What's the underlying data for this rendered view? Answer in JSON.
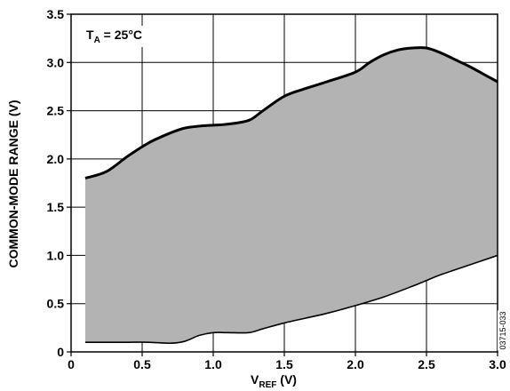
{
  "chart_data": {
    "type": "area",
    "xlabel": "V",
    "xlabel_sub": "REF",
    "xlabel_unit": " (V)",
    "ylabel": "COMMON-MODE RANGE (V)",
    "xlim": [
      0,
      3.0
    ],
    "ylim": [
      0,
      3.5
    ],
    "grid": true,
    "x_ticks": [
      0,
      0.5,
      1.0,
      1.5,
      2.0,
      2.5,
      3.0
    ],
    "x_tick_labels": [
      "0",
      "0.5",
      "1.0",
      "1.5",
      "2.0",
      "2.5",
      "3.0"
    ],
    "y_ticks": [
      0,
      0.5,
      1.0,
      1.5,
      2.0,
      2.5,
      3.0,
      3.5
    ],
    "y_tick_labels": [
      "0",
      "0.5",
      "1.0",
      "1.5",
      "2.0",
      "2.5",
      "3.0",
      "3.5"
    ],
    "annotation": {
      "main": "T",
      "sub": "A",
      "rest": " = 25°C"
    },
    "figure_code": "03715-033",
    "fill_color": "#b3b3b3",
    "line_color": "#000000",
    "upper": {
      "x": [
        0.1,
        0.25,
        0.4,
        0.55,
        0.7,
        0.8,
        0.9,
        1.0,
        1.1,
        1.25,
        1.35,
        1.5,
        1.65,
        1.8,
        2.0,
        2.1,
        2.2,
        2.3,
        2.4,
        2.5,
        2.6,
        2.7,
        2.8,
        2.9,
        3.0
      ],
      "y": [
        1.8,
        1.87,
        2.03,
        2.17,
        2.27,
        2.32,
        2.34,
        2.35,
        2.36,
        2.4,
        2.5,
        2.65,
        2.73,
        2.8,
        2.9,
        3.0,
        3.08,
        3.13,
        3.15,
        3.15,
        3.1,
        3.03,
        2.96,
        2.88,
        2.8
      ]
    },
    "lower": {
      "x": [
        0.1,
        0.25,
        0.4,
        0.55,
        0.7,
        0.8,
        0.9,
        1.0,
        1.1,
        1.25,
        1.35,
        1.5,
        1.65,
        1.8,
        2.0,
        2.2,
        2.4,
        2.5,
        2.6,
        2.8,
        3.0
      ],
      "y": [
        0.1,
        0.1,
        0.1,
        0.1,
        0.09,
        0.11,
        0.17,
        0.2,
        0.2,
        0.2,
        0.24,
        0.3,
        0.35,
        0.4,
        0.48,
        0.57,
        0.68,
        0.74,
        0.8,
        0.9,
        1.0
      ]
    }
  }
}
